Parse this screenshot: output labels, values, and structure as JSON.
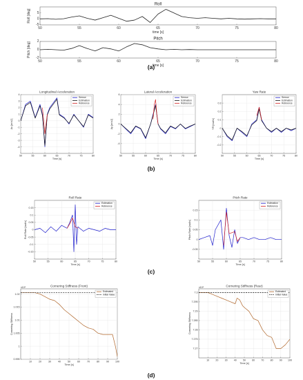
{
  "panel_labels": [
    "(a)",
    "(b)",
    "(c)",
    "(d)"
  ],
  "chart_data": [
    {
      "id": "roll",
      "type": "line",
      "title": "Roll",
      "xlabel": "time [s]",
      "ylabel": "Roll [deg]",
      "xlim": [
        50,
        80
      ],
      "ylim": [
        -5,
        10
      ],
      "xticks": [
        50,
        55,
        60,
        65,
        70,
        75,
        80
      ],
      "yticks": [
        -5,
        0,
        5
      ],
      "grid": false,
      "series": [
        {
          "color": "#222222",
          "x": [
            50,
            51,
            52,
            53,
            54,
            55,
            56,
            57,
            58,
            59,
            60,
            61,
            62,
            63,
            64,
            65,
            66,
            67,
            68,
            69,
            70,
            71,
            72,
            73,
            74,
            75,
            76,
            77,
            78,
            79,
            80
          ],
          "y": [
            0,
            0.2,
            -0.3,
            0.1,
            1.5,
            2.5,
            0.5,
            -1,
            1,
            3,
            0.5,
            -2,
            -1,
            2,
            -3,
            4,
            8,
            5,
            2,
            1,
            0.5,
            1,
            0.5,
            0,
            0.5,
            0,
            -0.2,
            0,
            0.2,
            0,
            0
          ]
        }
      ]
    },
    {
      "id": "pitch",
      "type": "line",
      "title": "Pitch",
      "xlabel": "time [s]",
      "ylabel": "Pitch [deg]",
      "xlim": [
        50,
        80
      ],
      "ylim": [
        -2,
        2
      ],
      "xticks": [
        50,
        55,
        60,
        65,
        70,
        75,
        80
      ],
      "yticks": [
        -2,
        0,
        2
      ],
      "grid": false,
      "series": [
        {
          "color": "#222222",
          "x": [
            50,
            51,
            52,
            53,
            54,
            55,
            56,
            57,
            58,
            59,
            60,
            61,
            62,
            63,
            64,
            65,
            66,
            67,
            68,
            69,
            70,
            71,
            72,
            73,
            74,
            75,
            76,
            77,
            78,
            79,
            80
          ],
          "y": [
            0,
            0.1,
            0,
            -0.1,
            0.3,
            1,
            0.3,
            -0.3,
            0.5,
            0.2,
            -0.3,
            0.7,
            1.5,
            1.2,
            0.5,
            0.2,
            0,
            0.1,
            0,
            0.05,
            0,
            0,
            0,
            0,
            0,
            0,
            0,
            0,
            0,
            0,
            0
          ]
        }
      ]
    },
    {
      "id": "long-accel",
      "type": "line",
      "title": "Longitudinal Acceleration",
      "xlabel": "Time [s]",
      "ylabel": "Ax [m/s2]",
      "xlim": [
        50,
        80
      ],
      "ylim": [
        -5,
        4
      ],
      "xticks": [
        50,
        55,
        60,
        65,
        70,
        75,
        80
      ],
      "yticks": [
        -4,
        -3,
        -2,
        -1,
        0,
        1,
        2,
        3,
        4
      ],
      "grid": true,
      "legend": {
        "position": "top-right",
        "entries": [
          "Sensor",
          "Estimation",
          "Reference"
        ]
      },
      "series": [
        {
          "name": "Sensor",
          "color": "#1c1ccc",
          "x": [
            50,
            52,
            54,
            56,
            58,
            59,
            60,
            61,
            62,
            64,
            65,
            66,
            68,
            70,
            72,
            74,
            76,
            78,
            80
          ],
          "y": [
            0,
            2.5,
            3,
            0.5,
            2.5,
            1,
            -4,
            1,
            2,
            3,
            3.5,
            1,
            0.5,
            -0.5,
            1,
            0,
            -1,
            1,
            0.5
          ]
        },
        {
          "name": "Estimation",
          "color": "#111111",
          "x": [
            50,
            52,
            54,
            56,
            58,
            59,
            60,
            61,
            62,
            64,
            65,
            66,
            68,
            70,
            72,
            74,
            76,
            78,
            80
          ],
          "y": [
            0,
            2.3,
            2.8,
            0.4,
            2.3,
            0.8,
            -3.8,
            0.9,
            1.8,
            2.8,
            3.3,
            0.9,
            0.4,
            -0.4,
            0.9,
            0,
            -0.9,
            0.9,
            0.4
          ]
        },
        {
          "name": "Reference",
          "color": "#d42020",
          "x": [
            59,
            60,
            61
          ],
          "y": [
            2,
            -2,
            1
          ]
        }
      ]
    },
    {
      "id": "lat-accel",
      "type": "line",
      "title": "Lateral Acceleration",
      "xlabel": "Time [s]",
      "ylabel": "Ay [m/s2]",
      "xlim": [
        50,
        80
      ],
      "ylim": [
        -6,
        6
      ],
      "xticks": [
        50,
        55,
        60,
        65,
        70,
        75,
        80
      ],
      "yticks": [
        -4,
        -2,
        0,
        2,
        4,
        6
      ],
      "grid": true,
      "legend": {
        "position": "top-right",
        "entries": [
          "Sensor",
          "Estimation",
          "Reference"
        ]
      },
      "series": [
        {
          "name": "Sensor",
          "color": "#1c1ccc",
          "x": [
            50,
            52,
            54,
            56,
            58,
            60,
            62,
            63,
            64,
            65,
            66,
            68,
            70,
            72,
            74,
            76,
            78,
            80
          ],
          "y": [
            0,
            -1,
            -2,
            -0.5,
            -1,
            -3,
            0,
            2,
            4,
            0,
            -1,
            -2,
            -0.5,
            -1,
            0,
            -1,
            -0.5,
            0
          ]
        },
        {
          "name": "Estimation",
          "color": "#111111",
          "x": [
            50,
            52,
            54,
            56,
            58,
            60,
            62,
            63,
            64,
            65,
            66,
            68,
            70,
            72,
            74,
            76,
            78,
            80
          ],
          "y": [
            0,
            -0.9,
            -1.8,
            -0.4,
            -0.9,
            -2.8,
            0,
            1.8,
            3.8,
            0,
            -0.9,
            -1.8,
            -0.4,
            -0.9,
            0,
            -0.9,
            -0.4,
            0
          ]
        },
        {
          "name": "Reference",
          "color": "#d42020",
          "x": [
            63,
            63.5,
            64,
            64.5,
            65
          ],
          "y": [
            1,
            4,
            5,
            2,
            0
          ]
        }
      ]
    },
    {
      "id": "yaw-rate",
      "type": "line",
      "title": "Yaw Rate",
      "xlabel": "Time [s]",
      "ylabel": "YR [rad/s]",
      "xlim": [
        50,
        80
      ],
      "ylim": [
        -0.3,
        0.4
      ],
      "xticks": [
        50,
        55,
        60,
        65,
        70,
        75,
        80
      ],
      "yticks": [
        -0.2,
        -0.1,
        0,
        0.1,
        0.2,
        0.3
      ],
      "grid": true,
      "legend": {
        "position": "top-right",
        "entries": [
          "Sensor",
          "Estimation",
          "Reference"
        ]
      },
      "series": [
        {
          "name": "Sensor",
          "color": "#1c1ccc",
          "x": [
            50,
            52,
            54,
            56,
            58,
            60,
            62,
            64,
            65,
            66,
            68,
            70,
            72,
            74,
            76,
            78,
            80
          ],
          "y": [
            0,
            -0.1,
            -0.15,
            0,
            -0.05,
            -0.1,
            0.05,
            0.1,
            0.25,
            0.1,
            0,
            -0.05,
            0,
            -0.05,
            0,
            -0.03,
            0
          ]
        },
        {
          "name": "Estimation",
          "color": "#111111",
          "x": [
            50,
            52,
            54,
            56,
            58,
            60,
            62,
            64,
            65,
            66,
            68,
            70,
            72,
            74,
            76,
            78,
            80
          ],
          "y": [
            0,
            -0.09,
            -0.14,
            0,
            -0.04,
            -0.09,
            0.04,
            0.09,
            0.23,
            0.09,
            0,
            -0.04,
            0,
            -0.04,
            0,
            -0.02,
            0
          ]
        },
        {
          "name": "Reference",
          "color": "#d42020",
          "x": [
            64,
            65,
            66
          ],
          "y": [
            0.15,
            0.25,
            0.1
          ]
        }
      ]
    },
    {
      "id": "roll-rate",
      "type": "line",
      "title": "Roll Rate",
      "xlabel": "Time [s]",
      "ylabel": "Roll Rate [rad/s]",
      "xlim": [
        50,
        80
      ],
      "ylim": [
        -0.2,
        0.2
      ],
      "xticks": [
        50,
        55,
        60,
        65,
        70,
        75,
        80
      ],
      "yticks": [
        -0.15,
        -0.1,
        -0.05,
        0,
        0.05,
        0.1,
        0.15
      ],
      "grid": true,
      "legend": {
        "position": "top-right",
        "entries": [
          "Estimation",
          "Reference"
        ]
      },
      "series": [
        {
          "name": "Estimation",
          "color": "#1c1ccc",
          "x": [
            50,
            52,
            54,
            56,
            58,
            60,
            62,
            63,
            64,
            64.5,
            65,
            65.5,
            66,
            68,
            70,
            72,
            74,
            76,
            78,
            80
          ],
          "y": [
            0,
            0.01,
            -0.02,
            0.02,
            -0.01,
            0.03,
            0.01,
            0.05,
            0.1,
            -0.15,
            0.17,
            -0.1,
            0.02,
            -0.01,
            0.01,
            0,
            -0.01,
            0.01,
            0,
            0
          ]
        },
        {
          "name": "Reference",
          "color": "#d42020",
          "x": [
            62,
            63,
            64,
            65,
            66
          ],
          "y": [
            0.01,
            0.04,
            0.08,
            0.02,
            0.01
          ]
        }
      ]
    },
    {
      "id": "pitch-rate",
      "type": "line",
      "title": "Pitch Rate",
      "xlabel": "Time [s]",
      "ylabel": "Pitch Rate [rad/s]",
      "xlim": [
        50,
        80
      ],
      "ylim": [
        -0.1,
        0.2
      ],
      "xticks": [
        50,
        55,
        60,
        65,
        70,
        75,
        80
      ],
      "yticks": [
        -0.05,
        0,
        0.05,
        0.1,
        0.15
      ],
      "grid": true,
      "legend": {
        "position": "top-right",
        "entries": [
          "Estimation",
          "Reference"
        ]
      },
      "series": [
        {
          "name": "Estimation",
          "color": "#1c1ccc",
          "x": [
            50,
            52,
            54,
            55,
            56,
            58,
            59,
            60,
            61,
            62,
            63,
            64,
            65,
            66,
            68,
            70,
            72,
            74,
            76,
            78,
            80
          ],
          "y": [
            0,
            0.01,
            0.02,
            -0.03,
            0.05,
            0.1,
            -0.05,
            0.16,
            0.02,
            -0.04,
            0.05,
            -0.02,
            0.01,
            0.01,
            0,
            0.01,
            0,
            0,
            0.01,
            0,
            0
          ]
        },
        {
          "name": "Reference",
          "color": "#d42020",
          "x": [
            59,
            60,
            61,
            63,
            64,
            65
          ],
          "y": [
            -0.03,
            0.14,
            0.03,
            0.04,
            -0.01,
            0.01
          ]
        }
      ]
    },
    {
      "id": "stiffness-front",
      "type": "line",
      "title": "Cornering Stiffness (Front)",
      "xlabel": "Time [s]",
      "ylabel": "Cornering Stiffness",
      "exponent": "x10⁴",
      "xlim": [
        0,
        100
      ],
      "ylim": [
        0.995,
        1.022
      ],
      "xticks": [
        10,
        20,
        30,
        40,
        50,
        60,
        70,
        80,
        90,
        100
      ],
      "yticks": [
        0.995,
        1.0,
        1.005,
        1.01,
        1.015,
        1.02
      ],
      "grid": true,
      "legend": {
        "position": "top-right",
        "entries": [
          "Estimated",
          "Initial Value"
        ]
      },
      "series": [
        {
          "name": "Estimated",
          "color": "#b0662a",
          "x": [
            0,
            5,
            10,
            15,
            20,
            25,
            30,
            35,
            40,
            45,
            50,
            55,
            60,
            65,
            70,
            75,
            80,
            85,
            90,
            95,
            98,
            100
          ],
          "y": [
            1.0205,
            1.0205,
            1.0205,
            1.0205,
            1.02,
            1.019,
            1.018,
            1.0175,
            1.016,
            1.014,
            1.0125,
            1.011,
            1.0095,
            1.008,
            1.007,
            1.0065,
            1.005,
            1.0045,
            1.0045,
            1.0045,
            1.0,
            0.996
          ]
        },
        {
          "name": "Initial Value",
          "color": "#111111",
          "dashed": true,
          "x": [
            0,
            100
          ],
          "y": [
            1.0205,
            1.0205
          ]
        }
      ]
    },
    {
      "id": "stiffness-rear",
      "type": "line",
      "title": "Cornering Stiffness (Rear)",
      "xlabel": "Time [s]",
      "ylabel": "Cornering Stiffness",
      "exponent": "x10⁴",
      "xlim": [
        0,
        100
      ],
      "ylim": [
        7.265,
        7.302
      ],
      "xticks": [
        10,
        20,
        30,
        40,
        50,
        60,
        70,
        80,
        90,
        100
      ],
      "yticks": [
        7.27,
        7.275,
        7.28,
        7.285,
        7.29,
        7.295,
        7.3
      ],
      "grid": true,
      "legend": {
        "position": "top-right",
        "entries": [
          "Estimated",
          "Initial Value"
        ]
      },
      "series": [
        {
          "name": "Estimated",
          "color": "#b0662a",
          "x": [
            0,
            5,
            10,
            15,
            20,
            25,
            30,
            35,
            40,
            42,
            45,
            48,
            50,
            55,
            60,
            65,
            70,
            75,
            80,
            85,
            90,
            95,
            100
          ],
          "y": [
            7.3,
            7.3,
            7.3,
            7.299,
            7.298,
            7.297,
            7.296,
            7.295,
            7.294,
            7.297,
            7.296,
            7.293,
            7.292,
            7.29,
            7.286,
            7.285,
            7.28,
            7.277,
            7.276,
            7.27,
            7.27,
            7.272,
            7.275
          ]
        },
        {
          "name": "Initial Value",
          "color": "#111111",
          "dashed": true,
          "x": [
            0,
            100
          ],
          "y": [
            7.3,
            7.3
          ]
        }
      ]
    }
  ]
}
